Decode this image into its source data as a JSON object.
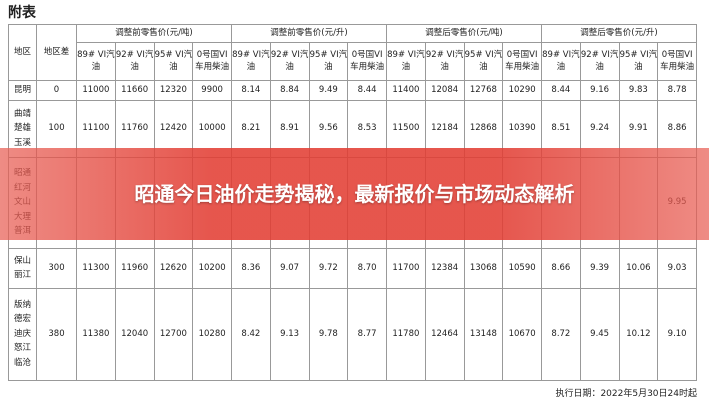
{
  "title": "附表",
  "header": {
    "region": "地区",
    "diff": "地区差",
    "groups": [
      "调整前零售价(元/吨)",
      "调整前零售价(元/升)",
      "调整后零售价(元/吨)",
      "调整后零售价(元/升)"
    ],
    "columns": [
      "89# VI汽油",
      "92# VI汽油",
      "95# VI汽油",
      "0号国VI车用柴油"
    ]
  },
  "rows": [
    {
      "region": [
        "昆明"
      ],
      "diff": "0",
      "values": [
        "11000",
        "11660",
        "12320",
        "9900",
        "8.14",
        "8.84",
        "9.49",
        "8.44",
        "11400",
        "12084",
        "12768",
        "10290",
        "8.44",
        "9.16",
        "9.83",
        "8.78"
      ]
    },
    {
      "region": [
        "曲靖",
        "楚雄",
        "玉溪"
      ],
      "diff": "100",
      "values": [
        "11100",
        "11760",
        "12420",
        "10000",
        "8.21",
        "8.91",
        "9.56",
        "8.53",
        "11500",
        "12184",
        "12868",
        "10390",
        "8.51",
        "9.24",
        "9.91",
        "8.86"
      ]
    },
    {
      "region": [
        "昭通",
        "红河",
        "文山",
        "大理",
        "普洱"
      ],
      "diff": null,
      "values": [
        null,
        null,
        null,
        null,
        null,
        null,
        null,
        null,
        null,
        null,
        null,
        null,
        null,
        null,
        null,
        "9.95"
      ]
    },
    {
      "region": [
        "保山",
        "丽江"
      ],
      "diff": "300",
      "values": [
        "11300",
        "11960",
        "12620",
        "10200",
        "8.36",
        "9.07",
        "9.72",
        "8.70",
        "11700",
        "12384",
        "13068",
        "10590",
        "8.66",
        "9.39",
        "10.06",
        "9.03"
      ]
    },
    {
      "region": [
        "版纳",
        "德宏",
        "迪庆",
        "怒江",
        "临沧"
      ],
      "diff": "380",
      "values": [
        "11380",
        "12040",
        "12700",
        "10280",
        "8.42",
        "9.13",
        "9.78",
        "8.77",
        "11780",
        "12464",
        "13148",
        "10670",
        "8.72",
        "9.45",
        "10.12",
        "9.10"
      ]
    }
  ],
  "footer": "执行日期：2022年5月30日24时起",
  "banner": "昭通今日油价走势揭秘，最新报价与市场动态解析"
}
